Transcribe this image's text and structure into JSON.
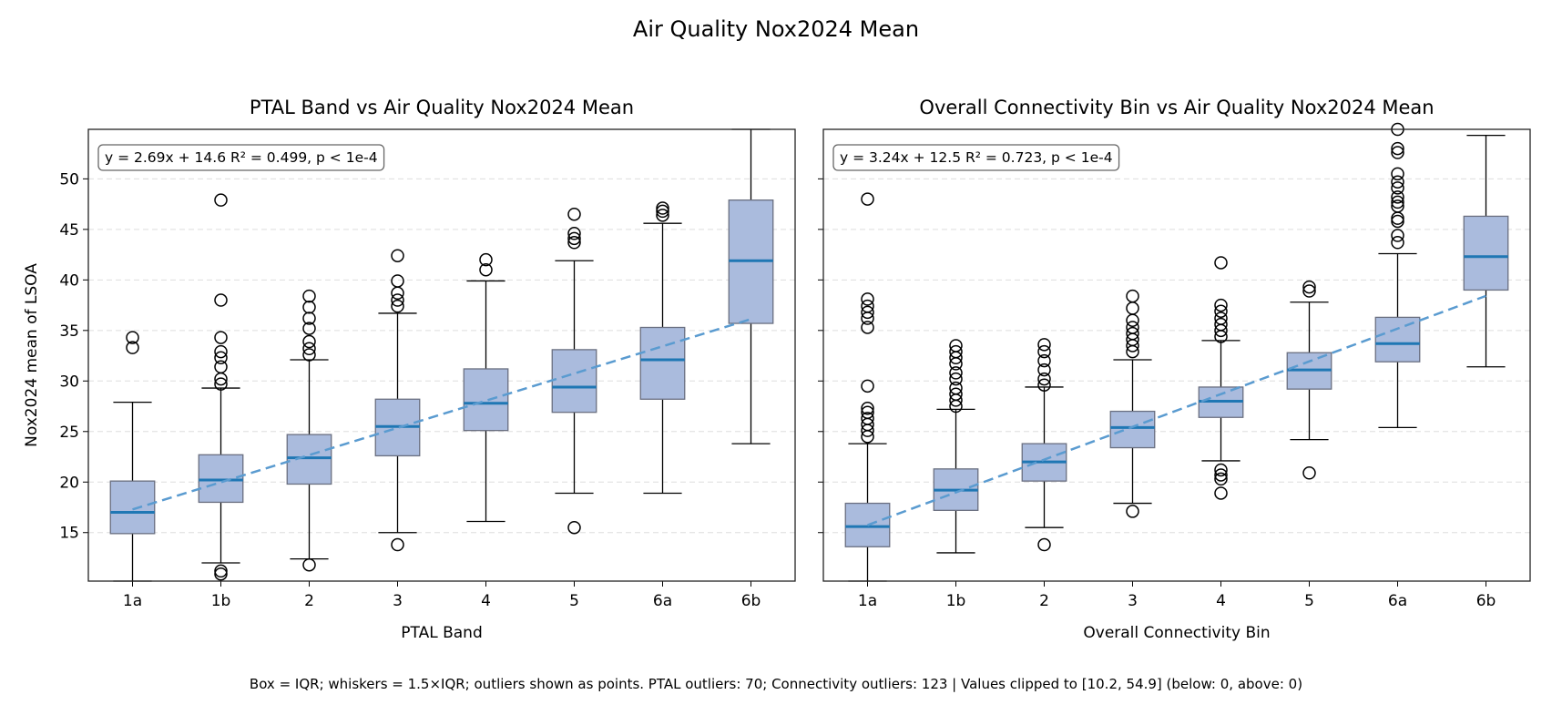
{
  "suptitle": "Air Quality Nox2024 Mean",
  "footnote": "Box = IQR; whiskers = 1.5×IQR; outliers shown as points. PTAL outliers: 70; Connectivity outliers: 123 | Values clipped to [10.2, 54.9] (below: 0, above: 0)",
  "colors": {
    "box_fill": "#aabbdd",
    "box_edge": "#6a6f80",
    "median": "#1f77b4",
    "fit_line": "#5a9bd0",
    "grid": "#dddddd"
  },
  "chart_data": [
    {
      "type": "box",
      "title": "PTAL Band vs Air Quality Nox2024 Mean",
      "xlabel": "PTAL Band",
      "ylabel": "Nox2024 mean of LSOA",
      "categories": [
        "1a",
        "1b",
        "2",
        "3",
        "4",
        "5",
        "6a",
        "6b"
      ],
      "ylim": [
        10.2,
        54.9
      ],
      "yticks": [
        15,
        20,
        25,
        30,
        35,
        40,
        45,
        50
      ],
      "grid": "y-dashed",
      "annotation": "y = 2.69x + 14.6 R² = 0.499, p < 1e-4",
      "fit": {
        "slope": 2.69,
        "intercept": 14.6
      },
      "boxes": [
        {
          "low": 10.2,
          "q1": 14.9,
          "median": 17.0,
          "q3": 20.1,
          "high": 27.9,
          "outliers": [
            34.3,
            33.3
          ]
        },
        {
          "low": 12.0,
          "q1": 18.0,
          "median": 20.2,
          "q3": 22.7,
          "high": 29.3,
          "outliers": [
            47.9,
            38.0,
            34.3,
            32.9,
            32.3,
            31.4,
            30.2,
            29.7,
            11.2,
            10.9
          ]
        },
        {
          "low": 12.4,
          "q1": 19.8,
          "median": 22.4,
          "q3": 24.7,
          "high": 32.1,
          "outliers": [
            38.4,
            37.3,
            36.2,
            35.2,
            33.9,
            33.2,
            32.6,
            11.8
          ]
        },
        {
          "low": 15.0,
          "q1": 22.6,
          "median": 25.5,
          "q3": 28.2,
          "high": 36.7,
          "outliers": [
            42.4,
            39.9,
            38.7,
            38.0,
            37.4,
            13.8
          ]
        },
        {
          "low": 16.1,
          "q1": 25.1,
          "median": 27.8,
          "q3": 31.2,
          "high": 39.9,
          "outliers": [
            42.0,
            41.0
          ]
        },
        {
          "low": 18.9,
          "q1": 26.9,
          "median": 29.4,
          "q3": 33.1,
          "high": 41.9,
          "outliers": [
            46.5,
            44.6,
            44.1,
            43.7,
            15.5
          ]
        },
        {
          "low": 18.9,
          "q1": 28.2,
          "median": 32.1,
          "q3": 35.3,
          "high": 45.6,
          "outliers": [
            47.1,
            46.8,
            46.4
          ]
        },
        {
          "low": 23.8,
          "q1": 35.7,
          "median": 41.9,
          "q3": 47.9,
          "high": 54.9,
          "outliers": []
        }
      ]
    },
    {
      "type": "box",
      "title": "Overall Connectivity Bin vs Air Quality Nox2024 Mean",
      "xlabel": "Overall Connectivity Bin",
      "ylabel": "",
      "categories": [
        "1a",
        "1b",
        "2",
        "3",
        "4",
        "5",
        "6a",
        "6b"
      ],
      "ylim": [
        10.2,
        54.9
      ],
      "yticks": [
        15,
        20,
        25,
        30,
        35,
        40,
        45,
        50
      ],
      "grid": "y-dashed",
      "annotation": "y = 3.24x + 12.5 R² = 0.723, p < 1e-4",
      "fit": {
        "slope": 3.24,
        "intercept": 12.5
      },
      "boxes": [
        {
          "low": 10.2,
          "q1": 13.6,
          "median": 15.6,
          "q3": 17.9,
          "high": 23.8,
          "outliers": [
            48.0,
            38.1,
            37.4,
            36.8,
            36.2,
            35.3,
            29.5,
            27.3,
            26.9,
            26.3,
            25.7,
            25.1,
            24.5
          ]
        },
        {
          "low": 13.0,
          "q1": 17.2,
          "median": 19.2,
          "q3": 21.3,
          "high": 27.2,
          "outliers": [
            33.5,
            32.9,
            32.3,
            31.7,
            30.8,
            30.2,
            29.3,
            28.7,
            28.1,
            27.5
          ]
        },
        {
          "low": 15.5,
          "q1": 20.1,
          "median": 22.0,
          "q3": 23.8,
          "high": 29.4,
          "outliers": [
            33.6,
            32.9,
            32.0,
            31.1,
            30.2,
            29.6,
            13.8
          ]
        },
        {
          "low": 17.9,
          "q1": 23.4,
          "median": 25.4,
          "q3": 27.0,
          "high": 32.1,
          "outliers": [
            38.4,
            37.2,
            36.0,
            35.3,
            34.7,
            34.1,
            33.5,
            32.9,
            17.1
          ]
        },
        {
          "low": 22.1,
          "q1": 26.4,
          "median": 28.0,
          "q3": 29.4,
          "high": 34.0,
          "outliers": [
            41.7,
            37.5,
            36.9,
            36.2,
            35.6,
            35.0,
            34.4,
            21.2,
            20.7,
            20.3,
            18.9
          ]
        },
        {
          "low": 24.2,
          "q1": 29.2,
          "median": 31.1,
          "q3": 32.8,
          "high": 37.8,
          "outliers": [
            39.3,
            38.9,
            20.9
          ]
        },
        {
          "low": 25.4,
          "q1": 31.9,
          "median": 33.7,
          "q3": 36.3,
          "high": 42.6,
          "outliers": [
            54.9,
            53.0,
            52.6,
            50.5,
            49.7,
            49.1,
            48.2,
            47.7,
            47.3,
            46.1,
            45.8,
            44.4,
            43.7
          ]
        },
        {
          "low": 31.4,
          "q1": 39.0,
          "median": 42.3,
          "q3": 46.3,
          "high": 54.3,
          "outliers": []
        }
      ]
    }
  ]
}
